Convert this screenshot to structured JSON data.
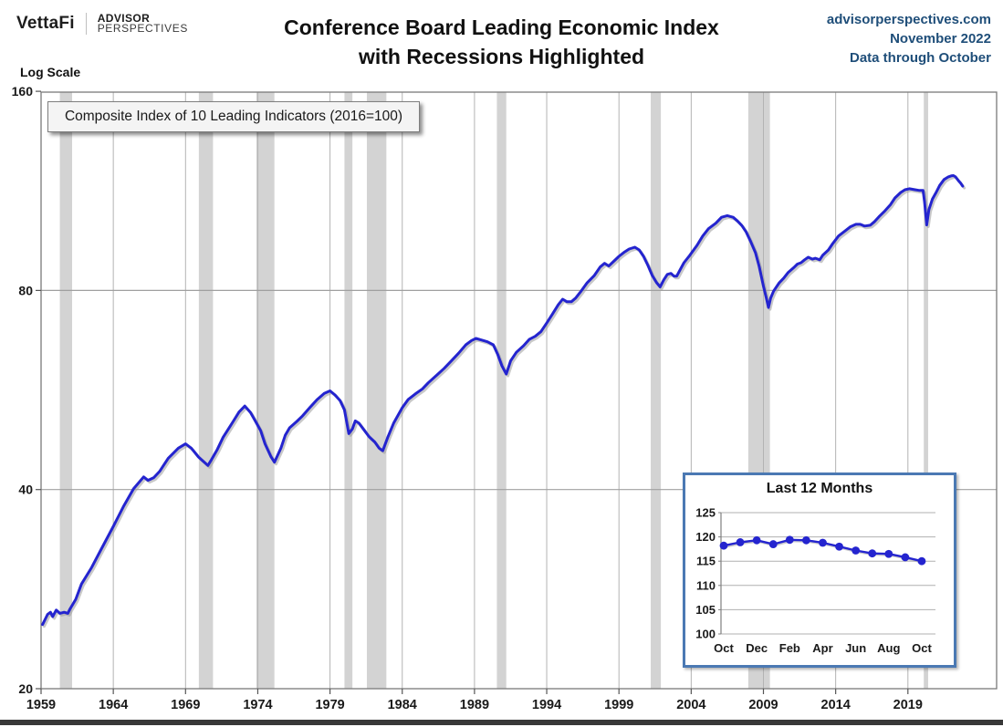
{
  "header": {
    "brand": {
      "vettafi": "VettaFi",
      "advisor_line1": "ADVISOR",
      "advisor_line2": "PERSPECTIVES"
    },
    "title_line1": "Conference Board Leading Economic Index",
    "title_line2": "with Recessions Highlighted",
    "source": {
      "site": "advisorperspectives.com",
      "date": "November 2022",
      "note": "Data through October",
      "color": "#1f4e79"
    }
  },
  "main_chart_labels": {
    "log_scale": "Log Scale",
    "legend": "Composite Index of 10 Leading Indicators (2016=100)"
  },
  "colors": {
    "line_blue": "#2424cf",
    "recession_band": "#d3d3d3",
    "gridline": "#b3b3b3",
    "h_gridline": "#a0a0a0",
    "plot_border": "#7a7a7a",
    "axis_text": "#1a1a1a",
    "source_blue": "#1f4e79",
    "inset_border": "#4b79b3"
  },
  "chart_data": [
    {
      "type": "line",
      "title": "Conference Board Leading Economic Index with Recessions Highlighted",
      "series_name": "Composite Index of 10 Leading Indicators (2016=100)",
      "y_scale": "log",
      "ylim": [
        20,
        160
      ],
      "y_ticks": [
        160,
        80,
        40,
        20
      ],
      "x_ticks": [
        1959,
        1964,
        1969,
        1974,
        1979,
        1984,
        1989,
        1994,
        1999,
        2004,
        2009,
        2014,
        2019
      ],
      "x_gridline_years": [
        1964,
        1969,
        1974,
        1979,
        1984,
        1989,
        1994,
        1999,
        2004,
        2009,
        2014,
        2019
      ],
      "x_range": [
        1959,
        2025.1
      ],
      "legend_position": "top-left",
      "recessions_highlighted": [
        [
          1960.3,
          1961.15
        ],
        [
          1969.92,
          1970.9
        ],
        [
          1973.9,
          1975.15
        ],
        [
          1980.0,
          1980.55
        ],
        [
          1981.55,
          1982.9
        ],
        [
          1990.55,
          1991.2
        ],
        [
          2001.2,
          2001.9
        ],
        [
          2007.95,
          2009.45
        ],
        [
          2020.1,
          2020.4
        ]
      ],
      "points": [
        [
          1959.1,
          25.0
        ],
        [
          1959.3,
          25.5
        ],
        [
          1959.45,
          25.9
        ],
        [
          1959.65,
          26.1
        ],
        [
          1959.8,
          25.7
        ],
        [
          1960.05,
          26.3
        ],
        [
          1960.3,
          26.0
        ],
        [
          1960.6,
          26.1
        ],
        [
          1960.85,
          26.0
        ],
        [
          1961.0,
          26.4
        ],
        [
          1961.4,
          27.3
        ],
        [
          1961.8,
          28.8
        ],
        [
          1962.5,
          30.5
        ],
        [
          1963.1,
          32.3
        ],
        [
          1964.0,
          35.2
        ],
        [
          1964.7,
          37.7
        ],
        [
          1965.4,
          40.1
        ],
        [
          1966.1,
          41.8
        ],
        [
          1966.4,
          41.3
        ],
        [
          1966.8,
          41.7
        ],
        [
          1967.2,
          42.6
        ],
        [
          1967.8,
          44.6
        ],
        [
          1968.5,
          46.2
        ],
        [
          1969.0,
          46.9
        ],
        [
          1969.4,
          46.2
        ],
        [
          1969.9,
          44.8
        ],
        [
          1970.3,
          44.0
        ],
        [
          1970.55,
          43.5
        ],
        [
          1970.8,
          44.4
        ],
        [
          1971.2,
          46.0
        ],
        [
          1971.6,
          48.0
        ],
        [
          1972.3,
          50.7
        ],
        [
          1972.7,
          52.4
        ],
        [
          1973.1,
          53.5
        ],
        [
          1973.5,
          52.3
        ],
        [
          1973.8,
          50.9
        ],
        [
          1974.2,
          49.1
        ],
        [
          1974.5,
          46.9
        ],
        [
          1974.9,
          44.9
        ],
        [
          1975.15,
          44.0
        ],
        [
          1975.6,
          46.2
        ],
        [
          1975.9,
          48.3
        ],
        [
          1976.2,
          49.6
        ],
        [
          1976.7,
          50.7
        ],
        [
          1977.1,
          51.7
        ],
        [
          1977.6,
          53.2
        ],
        [
          1978.1,
          54.7
        ],
        [
          1978.6,
          55.9
        ],
        [
          1979.0,
          56.4
        ],
        [
          1979.35,
          55.6
        ],
        [
          1979.7,
          54.5
        ],
        [
          1980.0,
          52.8
        ],
        [
          1980.3,
          48.6
        ],
        [
          1980.55,
          49.4
        ],
        [
          1980.75,
          50.8
        ],
        [
          1981.0,
          50.4
        ],
        [
          1981.3,
          49.4
        ],
        [
          1981.7,
          48.1
        ],
        [
          1982.1,
          47.2
        ],
        [
          1982.4,
          46.2
        ],
        [
          1982.65,
          45.8
        ],
        [
          1983.0,
          48.0
        ],
        [
          1983.4,
          50.4
        ],
        [
          1984.0,
          53.2
        ],
        [
          1984.4,
          54.7
        ],
        [
          1984.9,
          55.8
        ],
        [
          1985.4,
          56.8
        ],
        [
          1985.8,
          58.0
        ],
        [
          1986.4,
          59.6
        ],
        [
          1986.9,
          61.0
        ],
        [
          1987.4,
          62.6
        ],
        [
          1987.9,
          64.3
        ],
        [
          1988.4,
          66.2
        ],
        [
          1988.8,
          67.2
        ],
        [
          1989.1,
          67.7
        ],
        [
          1989.5,
          67.3
        ],
        [
          1989.9,
          66.9
        ],
        [
          1990.3,
          66.2
        ],
        [
          1990.6,
          64.1
        ],
        [
          1990.9,
          61.5
        ],
        [
          1991.2,
          59.8
        ],
        [
          1991.5,
          62.6
        ],
        [
          1991.9,
          64.5
        ],
        [
          1992.4,
          66.0
        ],
        [
          1992.8,
          67.5
        ],
        [
          1993.2,
          68.2
        ],
        [
          1993.6,
          69.3
        ],
        [
          1994.0,
          71.4
        ],
        [
          1994.4,
          73.7
        ],
        [
          1994.8,
          76.1
        ],
        [
          1995.1,
          77.6
        ],
        [
          1995.4,
          76.9
        ],
        [
          1995.7,
          76.9
        ],
        [
          1996.0,
          77.9
        ],
        [
          1996.4,
          79.9
        ],
        [
          1996.8,
          82.2
        ],
        [
          1997.3,
          84.3
        ],
        [
          1997.7,
          86.8
        ],
        [
          1998.0,
          87.9
        ],
        [
          1998.3,
          87.1
        ],
        [
          1998.6,
          88.4
        ],
        [
          1999.0,
          90.1
        ],
        [
          1999.4,
          91.5
        ],
        [
          1999.7,
          92.4
        ],
        [
          2000.1,
          93.0
        ],
        [
          2000.4,
          92.1
        ],
        [
          2000.7,
          90.1
        ],
        [
          2001.0,
          87.3
        ],
        [
          2001.3,
          84.3
        ],
        [
          2001.6,
          82.2
        ],
        [
          2001.85,
          81.0
        ],
        [
          2002.1,
          83.0
        ],
        [
          2002.35,
          84.6
        ],
        [
          2002.6,
          84.9
        ],
        [
          2002.8,
          84.1
        ],
        [
          2003.0,
          84.1
        ],
        [
          2003.2,
          85.7
        ],
        [
          2003.5,
          88.1
        ],
        [
          2003.9,
          90.4
        ],
        [
          2004.4,
          93.6
        ],
        [
          2004.8,
          96.7
        ],
        [
          2005.2,
          99.2
        ],
        [
          2005.7,
          101.1
        ],
        [
          2006.1,
          103.2
        ],
        [
          2006.5,
          103.8
        ],
        [
          2006.9,
          103.2
        ],
        [
          2007.2,
          101.9
        ],
        [
          2007.5,
          100.3
        ],
        [
          2007.8,
          98.1
        ],
        [
          2008.1,
          95.0
        ],
        [
          2008.45,
          91.2
        ],
        [
          2008.7,
          87.0
        ],
        [
          2009.0,
          81.2
        ],
        [
          2009.2,
          77.9
        ],
        [
          2009.35,
          75.4
        ],
        [
          2009.5,
          77.9
        ],
        [
          2009.7,
          79.8
        ],
        [
          2010.1,
          82.2
        ],
        [
          2010.4,
          83.5
        ],
        [
          2010.7,
          85.1
        ],
        [
          2011.1,
          86.6
        ],
        [
          2011.35,
          87.7
        ],
        [
          2011.6,
          88.1
        ],
        [
          2011.85,
          89.0
        ],
        [
          2012.1,
          89.8
        ],
        [
          2012.4,
          89.2
        ],
        [
          2012.6,
          89.5
        ],
        [
          2012.9,
          89.0
        ],
        [
          2013.1,
          90.4
        ],
        [
          2013.5,
          92.1
        ],
        [
          2013.8,
          94.2
        ],
        [
          2014.2,
          96.7
        ],
        [
          2014.6,
          98.2
        ],
        [
          2015.0,
          99.8
        ],
        [
          2015.4,
          100.7
        ],
        [
          2015.7,
          100.7
        ],
        [
          2016.0,
          100.1
        ],
        [
          2016.4,
          100.4
        ],
        [
          2016.7,
          101.7
        ],
        [
          2017.0,
          103.4
        ],
        [
          2017.4,
          105.5
        ],
        [
          2017.8,
          107.9
        ],
        [
          2018.1,
          110.4
        ],
        [
          2018.5,
          112.5
        ],
        [
          2018.8,
          113.6
        ],
        [
          2019.1,
          114.0
        ],
        [
          2019.5,
          113.6
        ],
        [
          2019.8,
          113.3
        ],
        [
          2020.05,
          113.3
        ],
        [
          2020.15,
          109.0
        ],
        [
          2020.3,
          100.5
        ],
        [
          2020.45,
          106.0
        ],
        [
          2020.7,
          110.0
        ],
        [
          2020.95,
          112.5
        ],
        [
          2021.2,
          115.3
        ],
        [
          2021.5,
          117.7
        ],
        [
          2021.8,
          118.8
        ],
        [
          2022.0,
          119.2
        ],
        [
          2022.15,
          119.3
        ],
        [
          2022.3,
          118.8
        ],
        [
          2022.5,
          117.2
        ],
        [
          2022.65,
          116.2
        ],
        [
          2022.79,
          115.0
        ]
      ]
    },
    {
      "type": "line",
      "title": "Last 12 Months",
      "marker": "circle",
      "ylim": [
        100,
        125
      ],
      "y_ticks": [
        125,
        120,
        115,
        110,
        105,
        100
      ],
      "months": [
        "Oct",
        "Nov",
        "Dec",
        "Jan",
        "Feb",
        "Mar",
        "Apr",
        "May",
        "Jun",
        "Jul",
        "Aug",
        "Sep",
        "Oct"
      ],
      "x_labels_shown": [
        "Oct",
        "Dec",
        "Feb",
        "Apr",
        "Jun",
        "Aug",
        "Oct"
      ],
      "x_label_every": 2,
      "values": [
        118.2,
        118.9,
        119.3,
        118.5,
        119.4,
        119.3,
        118.8,
        118.0,
        117.2,
        116.6,
        116.5,
        115.8,
        115.0
      ]
    }
  ]
}
